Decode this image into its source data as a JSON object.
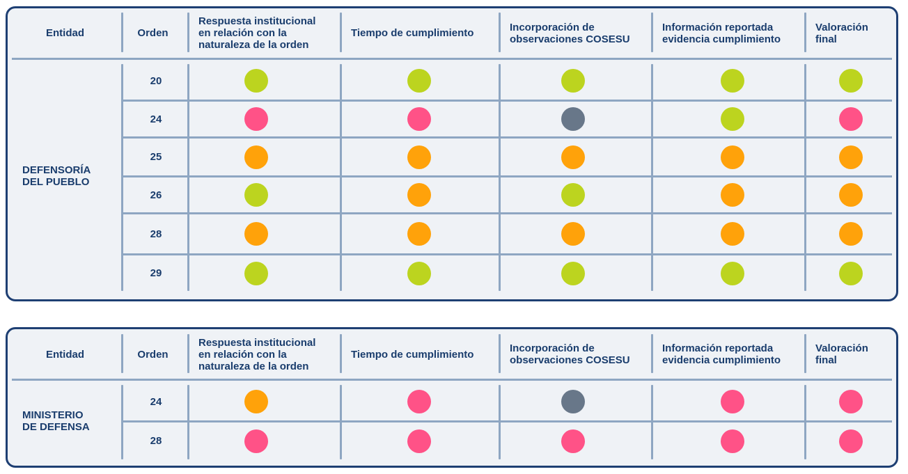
{
  "colors": {
    "green": "#bcd41f",
    "pink": "#ff5287",
    "orange": "#ffa20a",
    "gray": "#687789"
  },
  "headers": {
    "entidad": "Entidad",
    "orden": "Orden",
    "respuesta": "Respuesta institucional\nen relación con la\nnaturaleza de la orden",
    "tiempo": "Tiempo de cumplimiento",
    "incorporacion": "Incorporación de\nobservaciones COSESU",
    "informacion": "Información reportada\nevidencia cumplimiento",
    "valoracion": "Valoración\nfinal"
  },
  "tables": [
    {
      "entity": "DEFENSORÍA\nDEL PUEBLO",
      "rows": [
        {
          "orden": "20",
          "status": [
            "green",
            "green",
            "green",
            "green",
            "green"
          ]
        },
        {
          "orden": "24",
          "status": [
            "pink",
            "pink",
            "gray",
            "green",
            "pink"
          ]
        },
        {
          "orden": "25",
          "status": [
            "orange",
            "orange",
            "orange",
            "orange",
            "orange"
          ]
        },
        {
          "orden": "26",
          "status": [
            "green",
            "orange",
            "green",
            "orange",
            "orange"
          ]
        },
        {
          "orden": "28",
          "status": [
            "orange",
            "orange",
            "orange",
            "orange",
            "orange"
          ]
        },
        {
          "orden": "29",
          "status": [
            "green",
            "green",
            "green",
            "green",
            "green"
          ]
        }
      ]
    },
    {
      "entity": "MINISTERIO\nDE DEFENSA",
      "rows": [
        {
          "orden": "24",
          "status": [
            "orange",
            "pink",
            "gray",
            "pink",
            "pink"
          ]
        },
        {
          "orden": "28",
          "status": [
            "pink",
            "pink",
            "pink",
            "pink",
            "pink"
          ]
        }
      ]
    }
  ]
}
